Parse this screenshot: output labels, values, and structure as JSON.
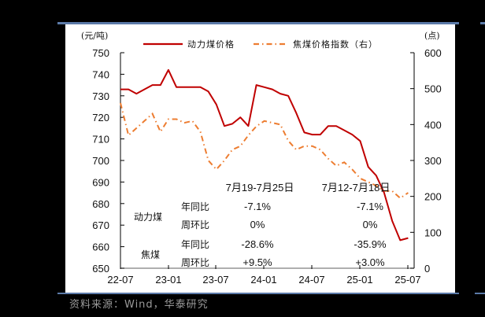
{
  "source": "资料来源：Wind，华泰研究",
  "chart_data": {
    "type": "line",
    "title": "",
    "left_unit": "(元/吨)",
    "right_unit": "(点)",
    "legend": [
      {
        "name": "动力煤价格",
        "color": "#c00000",
        "style": "solid",
        "axis": "left"
      },
      {
        "name": "焦煤价格指数（右）",
        "color": "#ed7d31",
        "style": "dash-dot",
        "axis": "right"
      }
    ],
    "legend_position": "top",
    "x_tick_labels": [
      "22-07",
      "23-01",
      "23-07",
      "24-01",
      "24-07",
      "25-01",
      "25-07"
    ],
    "left_axis": {
      "ylim": [
        650,
        750
      ],
      "ticks": [
        750,
        740,
        730,
        720,
        710,
        700,
        690,
        680,
        670,
        660,
        650
      ]
    },
    "right_axis": {
      "ylim": [
        0,
        600
      ],
      "ticks": [
        600,
        500,
        400,
        300,
        200,
        100,
        0
      ]
    },
    "grid": false,
    "series": [
      {
        "name": "动力煤价格",
        "x": [
          "2022-07",
          "2022-08",
          "2022-09",
          "2022-10",
          "2022-11",
          "2022-12",
          "2023-01",
          "2023-02",
          "2023-03",
          "2023-04",
          "2023-05",
          "2023-06",
          "2023-07",
          "2023-08",
          "2023-09",
          "2023-10",
          "2023-11",
          "2023-12",
          "2024-01",
          "2024-02",
          "2024-03",
          "2024-04",
          "2024-05",
          "2024-06",
          "2024-07",
          "2024-08",
          "2024-09",
          "2024-10",
          "2024-11",
          "2024-12",
          "2025-01",
          "2025-02",
          "2025-03",
          "2025-04",
          "2025-05",
          "2025-06",
          "2025-07"
        ],
        "values": [
          733,
          733,
          731,
          733,
          735,
          735,
          742,
          734,
          734,
          734,
          734,
          732,
          726,
          716,
          717,
          720,
          716,
          735,
          734,
          733,
          731,
          730,
          722,
          713,
          712,
          712,
          716,
          716,
          714,
          712,
          709,
          697,
          693,
          685,
          672,
          663,
          664
        ]
      },
      {
        "name": "焦煤价格指数（右）",
        "x": [
          "2022-07",
          "2022-08",
          "2022-09",
          "2022-10",
          "2022-11",
          "2022-12",
          "2023-01",
          "2023-02",
          "2023-03",
          "2023-04",
          "2023-05",
          "2023-06",
          "2023-07",
          "2023-08",
          "2023-09",
          "2023-10",
          "2023-11",
          "2023-12",
          "2024-01",
          "2024-02",
          "2024-03",
          "2024-04",
          "2024-05",
          "2024-06",
          "2024-07",
          "2024-08",
          "2024-09",
          "2024-10",
          "2024-11",
          "2024-12",
          "2025-01",
          "2025-02",
          "2025-03",
          "2025-04",
          "2025-05",
          "2025-06",
          "2025-07"
        ],
        "values": [
          460,
          370,
          390,
          410,
          430,
          380,
          415,
          415,
          405,
          410,
          380,
          300,
          275,
          300,
          330,
          340,
          370,
          395,
          410,
          405,
          400,
          355,
          330,
          340,
          340,
          330,
          305,
          285,
          295,
          275,
          250,
          240,
          230,
          215,
          215,
          195,
          210
        ]
      }
    ],
    "annotation_table": {
      "headers": [
        "7月19-7月25日",
        "7月12-7月18日"
      ],
      "rows": [
        {
          "group": "动力煤",
          "metric": "年同比",
          "values": [
            "-7.1%",
            "-7.1%"
          ]
        },
        {
          "group": "动力煤",
          "metric": "周环比",
          "values": [
            "0%",
            "0%"
          ]
        },
        {
          "group": "焦煤",
          "metric": "年同比",
          "values": [
            "-28.6%",
            "-35.9%"
          ]
        },
        {
          "group": "焦煤",
          "metric": "周环比",
          "values": [
            "+9.5%",
            "+3.0%"
          ]
        }
      ]
    }
  }
}
